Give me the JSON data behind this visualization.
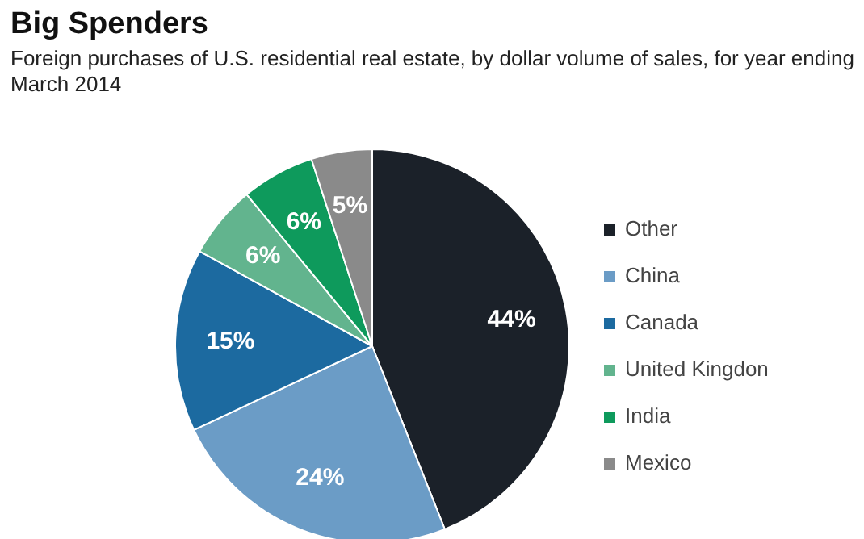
{
  "chart_data": {
    "type": "pie",
    "title": "Big Spenders",
    "subtitle": "Foreign purchases of U.S. residential real estate, by dollar volume of sales, for year ending March 2014",
    "categories": [
      "Other",
      "China",
      "Canada",
      "United Kingdon",
      "India",
      "Mexico"
    ],
    "values": [
      44,
      24,
      15,
      6,
      6,
      5
    ],
    "colors": [
      "#1b2129",
      "#6b9cc6",
      "#1c6aa0",
      "#62b48e",
      "#0e9a5c",
      "#8a8a8a"
    ],
    "value_labels": [
      "44%",
      "24%",
      "15%",
      "6%",
      "6%",
      "5%"
    ],
    "legend": "right"
  }
}
